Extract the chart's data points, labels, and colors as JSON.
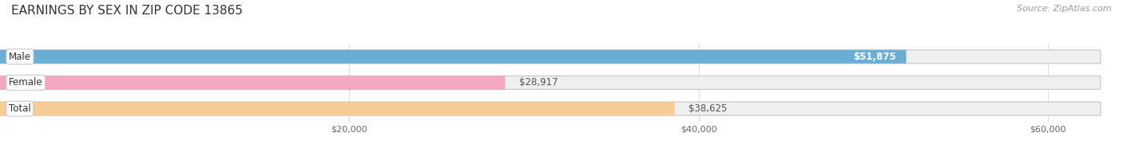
{
  "title": "EARNINGS BY SEX IN ZIP CODE 13865",
  "categories": [
    "Male",
    "Female",
    "Total"
  ],
  "values": [
    51875,
    28917,
    38625
  ],
  "bar_colors": [
    "#6aaed6",
    "#f4a7c0",
    "#f8cc96"
  ],
  "bar_bg_color": "#efefef",
  "value_labels": [
    "$51,875",
    "$28,917",
    "$38,625"
  ],
  "label_inside": [
    true,
    false,
    false
  ],
  "x_max": 63000,
  "x_ticks": [
    20000,
    40000,
    60000
  ],
  "x_tick_labels": [
    "$20,000",
    "$40,000",
    "$60,000"
  ],
  "source_text": "Source: ZipAtlas.com",
  "bg_color": "#ffffff",
  "title_fontsize": 11,
  "bar_height": 0.52,
  "fig_width": 14.06,
  "fig_height": 1.96,
  "dpi": 100,
  "grid_color": "#dddddd",
  "label_color_inside": "#ffffff",
  "label_color_outside": "#555555"
}
